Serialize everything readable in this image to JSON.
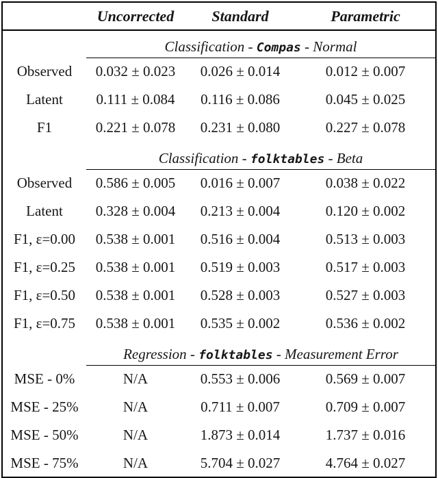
{
  "colors": {
    "background": "#ffffff",
    "text": "#161616",
    "border": "#000000"
  },
  "table": {
    "columns": [
      "Uncorrected",
      "Standard",
      "Parametric"
    ],
    "sections": [
      {
        "title_prefix": "Classification - ",
        "title_mono": "Compas",
        "title_suffix": " - Normal",
        "rows": [
          {
            "label": "Observed",
            "values": [
              "0.032 ± 0.023",
              "0.026 ± 0.014",
              "0.012 ± 0.007"
            ]
          },
          {
            "label": "Latent",
            "values": [
              "0.111 ± 0.084",
              "0.116 ± 0.086",
              "0.045 ± 0.025"
            ]
          },
          {
            "label": "F1",
            "values": [
              "0.221 ± 0.078",
              "0.231 ± 0.080",
              "0.227 ± 0.078"
            ]
          }
        ]
      },
      {
        "title_prefix": "Classification - ",
        "title_mono": "folktables",
        "title_suffix": " - Beta",
        "rows": [
          {
            "label": "Observed",
            "values": [
              "0.586 ± 0.005",
              "0.016 ± 0.007",
              "0.038 ± 0.022"
            ]
          },
          {
            "label": "Latent",
            "values": [
              "0.328 ± 0.004",
              "0.213 ± 0.004",
              "0.120 ± 0.002"
            ]
          },
          {
            "label": "F1, ε=0.00",
            "values": [
              "0.538 ± 0.001",
              "0.516 ± 0.004",
              "0.513 ± 0.003"
            ]
          },
          {
            "label": "F1, ε=0.25",
            "values": [
              "0.538 ± 0.001",
              "0.519 ± 0.003",
              "0.517 ± 0.003"
            ]
          },
          {
            "label": "F1, ε=0.50",
            "values": [
              "0.538 ± 0.001",
              "0.528 ± 0.003",
              "0.527 ± 0.003"
            ]
          },
          {
            "label": "F1, ε=0.75",
            "values": [
              "0.538 ± 0.001",
              "0.535 ± 0.002",
              "0.536 ± 0.002"
            ]
          }
        ]
      },
      {
        "title_prefix": "Regression - ",
        "title_mono": "folktables",
        "title_suffix": " - Measurement Error",
        "rows": [
          {
            "label": "MSE - 0%",
            "values": [
              "N/A",
              "0.553 ± 0.006",
              "0.569 ± 0.007"
            ]
          },
          {
            "label": "MSE - 25%",
            "values": [
              "N/A",
              "0.711 ± 0.007",
              "0.709 ± 0.007"
            ]
          },
          {
            "label": "MSE - 50%",
            "values": [
              "N/A",
              "1.873 ± 0.014",
              "1.737 ± 0.016"
            ]
          },
          {
            "label": "MSE - 75%",
            "values": [
              "N/A",
              "5.704 ± 0.027",
              "4.764 ± 0.027"
            ]
          }
        ]
      }
    ]
  }
}
